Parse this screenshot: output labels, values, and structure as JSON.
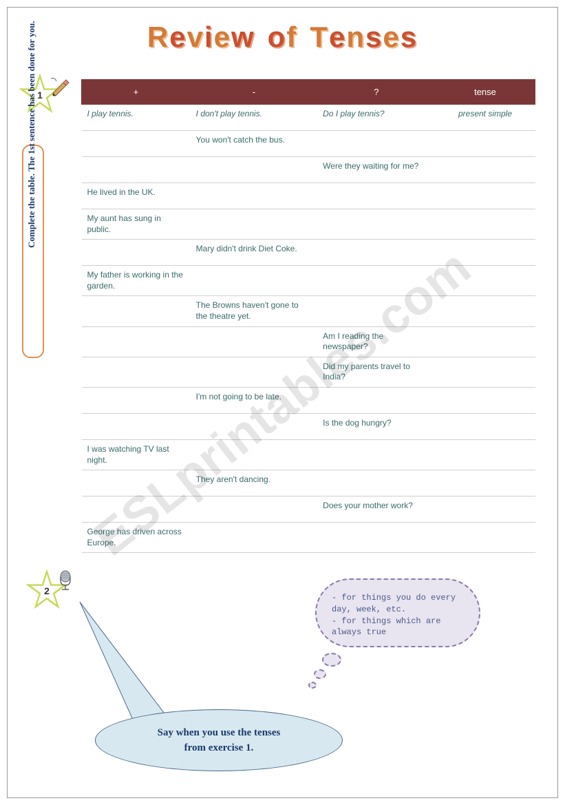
{
  "title": "Review of Tenses",
  "title_chars": [
    "R",
    "e",
    "v",
    "i",
    "e",
    "w",
    " ",
    "o",
    "f",
    " ",
    "T",
    "e",
    "n",
    "s",
    "e",
    "s"
  ],
  "watermark": "ESLprintables.com",
  "instruction": "Complete the table. The 1st sentence has been done for you.",
  "table": {
    "headers": {
      "plus": "+",
      "minus": "-",
      "question": "?",
      "tense": "tense"
    },
    "rows": [
      {
        "plus": "I play tennis.",
        "minus": "I don't play tennis.",
        "question": "Do I play tennis?",
        "tense": "present simple",
        "italic": true
      },
      {
        "plus": "",
        "minus": "You won't catch the bus.",
        "question": "",
        "tense": ""
      },
      {
        "plus": "",
        "minus": "",
        "question": "Were they waiting for me?",
        "tense": ""
      },
      {
        "plus": "He lived in the UK.",
        "minus": "",
        "question": "",
        "tense": ""
      },
      {
        "plus": "My aunt has sung in public.",
        "minus": "",
        "question": "",
        "tense": ""
      },
      {
        "plus": "",
        "minus": "Mary didn't drink Diet Coke.",
        "question": "",
        "tense": ""
      },
      {
        "plus": "My father is working in the garden.",
        "minus": "",
        "question": "",
        "tense": ""
      },
      {
        "plus": "",
        "minus": "The Browns haven't gone to the theatre yet.",
        "question": "",
        "tense": ""
      },
      {
        "plus": "",
        "minus": "",
        "question": "Am I reading the newspaper?",
        "tense": ""
      },
      {
        "plus": "",
        "minus": "",
        "question": "Did my parents travel to India?",
        "tense": ""
      },
      {
        "plus": "",
        "minus": "I'm not going to be late.",
        "question": "",
        "tense": ""
      },
      {
        "plus": "",
        "minus": "",
        "question": "Is the dog hungry?",
        "tense": ""
      },
      {
        "plus": "I was watching TV last night.",
        "minus": "",
        "question": "",
        "tense": ""
      },
      {
        "plus": "",
        "minus": "They aren't dancing.",
        "question": "",
        "tense": ""
      },
      {
        "plus": "",
        "minus": "",
        "question": "Does your mother work?",
        "tense": ""
      },
      {
        "plus": "George has driven across Europe.",
        "minus": "",
        "question": "",
        "tense": ""
      }
    ]
  },
  "thought": {
    "line1": "- for things you do every day, week, etc.",
    "line2": "- for things which are always true"
  },
  "speech": {
    "line1": "Say when you use the tenses",
    "line2": "from exercise 1."
  },
  "badge1": "1",
  "badge2": "2",
  "colors": {
    "header_bg": "#7a3636",
    "table_text": "#3a6a6a",
    "cloud_bg": "#e8e4f0",
    "cloud_border": "#8a7aa8",
    "speech_bg": "#d8e8f0",
    "speech_border": "#4a6a8a",
    "instr_border": "#e09050"
  }
}
